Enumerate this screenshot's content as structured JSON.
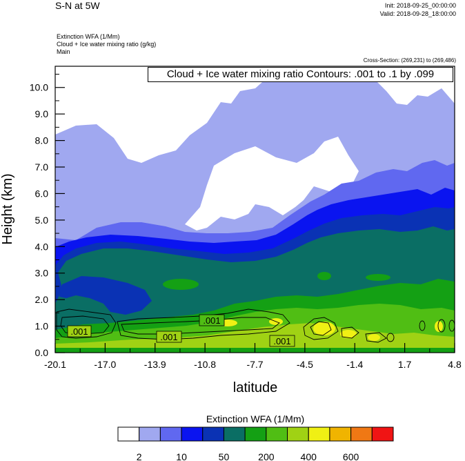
{
  "header": {
    "title": "S-N at 5W",
    "init": "Init: 2018-09-25_00:00:00",
    "valid": "Valid: 2018-09-28_18:00:00",
    "var1": "Extinction WFA   (1/Mm)",
    "var2": "Cloud + Ice water mixing ratio   (g/kg)",
    "var3": "Main",
    "cross_section": "Cross-Section: (269,231) to (269,486)",
    "contour_info": "Cloud + Ice water mixing ratio Contours: .001 to .1 by .099"
  },
  "chart_data": {
    "type": "heatmap",
    "xlabel": "latitude",
    "ylabel": "Height (km)",
    "xlim": [
      -20.1,
      4.8
    ],
    "ylim": [
      0.0,
      10.8
    ],
    "x_ticks": [
      "-20.1",
      "-17.0",
      "-13.9",
      "-10.8",
      "-7.7",
      "-4.5",
      "-1.4",
      "1.7",
      "4.8"
    ],
    "y_ticks": [
      "0.0",
      "1.0",
      "2.0",
      "3.0",
      "4.0",
      "5.0",
      "6.0",
      "7.0",
      "8.0",
      "9.0",
      "10.0"
    ],
    "contour_labels": [
      ".001",
      ".001",
      ".001",
      ".001"
    ],
    "colorbar": {
      "title": "Extinction WFA  (1/Mm)",
      "labels": [
        "2",
        "10",
        "50",
        "200",
        "400",
        "600"
      ],
      "colors": [
        "#ffffff",
        "#a0a8f0",
        "#6068f0",
        "#0a14f0",
        "#0a32b4",
        "#0a6e64",
        "#14a014",
        "#50be14",
        "#a0d214",
        "#f0f014",
        "#f0b400",
        "#f07814",
        "#f01414"
      ]
    }
  }
}
